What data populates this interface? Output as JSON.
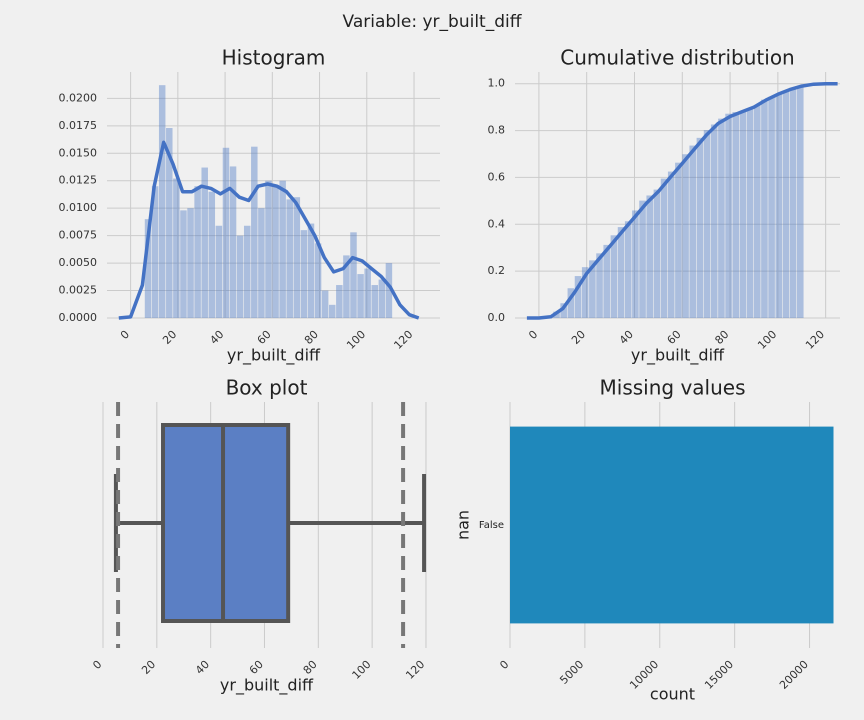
{
  "title": "Variable: yr_built_diff",
  "chart_data": [
    {
      "type": "histogram",
      "title": "Histogram",
      "xlabel": "yr_built_diff",
      "color": "#4472c4",
      "grid": true,
      "bins": [
        6,
        9,
        12,
        15,
        18,
        21,
        24,
        27,
        30,
        33,
        36,
        39,
        42,
        45,
        48,
        51,
        54,
        57,
        60,
        63,
        66,
        69,
        72,
        75,
        78,
        81,
        84,
        87,
        90,
        93,
        96,
        99,
        102,
        105,
        108,
        111
      ],
      "values": [
        0.009,
        0.012,
        0.0212,
        0.0173,
        0.0127,
        0.0098,
        0.01,
        0.012,
        0.0137,
        0.0115,
        0.0084,
        0.0155,
        0.0138,
        0.0075,
        0.0084,
        0.0156,
        0.01,
        0.0125,
        0.012,
        0.0125,
        0.0108,
        0.011,
        0.008,
        0.0086,
        0.0068,
        0.0025,
        0.0012,
        0.003,
        0.0057,
        0.0078,
        0.004,
        0.0045,
        0.003,
        0.0035,
        0.005
      ],
      "line": {
        "x": [
          -5,
          0,
          5,
          10,
          14,
          18,
          22,
          26,
          30,
          34,
          38,
          42,
          46,
          50,
          54,
          58,
          62,
          66,
          70,
          74,
          78,
          82,
          86,
          90,
          94,
          98,
          102,
          106,
          110,
          114,
          118,
          122
        ],
        "values": [
          0,
          0.0001,
          0.003,
          0.012,
          0.016,
          0.014,
          0.0115,
          0.0115,
          0.012,
          0.0118,
          0.0113,
          0.0118,
          0.011,
          0.0107,
          0.012,
          0.0122,
          0.012,
          0.0115,
          0.0105,
          0.009,
          0.0075,
          0.0055,
          0.0042,
          0.0045,
          0.0055,
          0.0052,
          0.0045,
          0.0038,
          0.0028,
          0.0012,
          0.0003,
          0
        ]
      },
      "xlim": [
        -10,
        131
      ],
      "xticks": [
        0,
        20,
        40,
        60,
        80,
        100,
        120
      ],
      "ylim": [
        0,
        0.0224
      ],
      "yticks": [
        {
          "value": 0,
          "label": "0.0000"
        },
        {
          "value": 0.0025,
          "label": "0.0025"
        },
        {
          "value": 0.005,
          "label": "0.0050"
        },
        {
          "value": 0.0075,
          "label": "0.0075"
        },
        {
          "value": 0.01,
          "label": "0.0100"
        },
        {
          "value": 0.0125,
          "label": "0.0125"
        },
        {
          "value": 0.015,
          "label": "0.0150"
        },
        {
          "value": 0.0175,
          "label": "0.0175"
        },
        {
          "value": 0.02,
          "label": "0.0200"
        }
      ]
    },
    {
      "type": "histogram",
      "title": "Cumulative distribution",
      "xlabel": "yr_built_diff",
      "color": "#4472c4",
      "grid": true,
      "bins": [
        6,
        9,
        12,
        15,
        18,
        21,
        24,
        27,
        30,
        33,
        36,
        39,
        42,
        45,
        48,
        51,
        54,
        57,
        60,
        63,
        66,
        69,
        72,
        75,
        78,
        81,
        84,
        87,
        90,
        93,
        96,
        99,
        102,
        105,
        108,
        111
      ],
      "values": [
        0.027,
        0.063,
        0.127,
        0.179,
        0.217,
        0.246,
        0.276,
        0.312,
        0.353,
        0.388,
        0.413,
        0.459,
        0.501,
        0.523,
        0.548,
        0.595,
        0.625,
        0.663,
        0.699,
        0.736,
        0.769,
        0.802,
        0.826,
        0.851,
        0.872,
        0.879,
        0.883,
        0.892,
        0.909,
        0.932,
        0.944,
        0.958,
        0.967,
        0.977,
        0.992
      ],
      "line": {
        "x": [
          -5,
          0,
          5,
          10,
          15,
          20,
          25,
          30,
          35,
          40,
          45,
          50,
          55,
          60,
          65,
          70,
          75,
          80,
          85,
          90,
          95,
          100,
          105,
          110,
          115,
          120,
          125
        ],
        "values": [
          0,
          0,
          0.005,
          0.04,
          0.11,
          0.19,
          0.25,
          0.31,
          0.37,
          0.43,
          0.49,
          0.54,
          0.6,
          0.66,
          0.72,
          0.78,
          0.83,
          0.86,
          0.88,
          0.9,
          0.93,
          0.955,
          0.975,
          0.99,
          0.998,
          1,
          1
        ]
      },
      "xlim": [
        -10,
        126
      ],
      "xticks": [
        0,
        20,
        40,
        60,
        80,
        100,
        120
      ],
      "ylim": [
        0,
        1.05
      ],
      "yticks": [
        {
          "value": 0,
          "label": "0.0"
        },
        0.2,
        0.4,
        0.6,
        0.8,
        {
          "value": 1,
          "label": "1.0"
        }
      ]
    },
    {
      "type": "box",
      "title": "Box plot",
      "xlabel": "yr_built_diff",
      "color": "#5b7fc4",
      "grid": true,
      "min": 4.8,
      "q1": 22.3,
      "median": 44.6,
      "q3": 68.8,
      "max": 119.3,
      "lines": [
        5.6,
        111.5
      ],
      "xlim": [
        0,
        121.5
      ],
      "xticks": [
        0,
        20,
        40,
        60,
        80,
        100,
        120
      ]
    },
    {
      "type": "barh",
      "title": "Missing values",
      "xlabel": "count",
      "ylabel": "nan",
      "color": "#1f88bb",
      "grid": true,
      "categories": [
        "False"
      ],
      "values": [
        21600
      ],
      "xlim": [
        0,
        21700
      ],
      "xticks": [
        0,
        5000,
        10000,
        15000,
        20000
      ]
    }
  ]
}
